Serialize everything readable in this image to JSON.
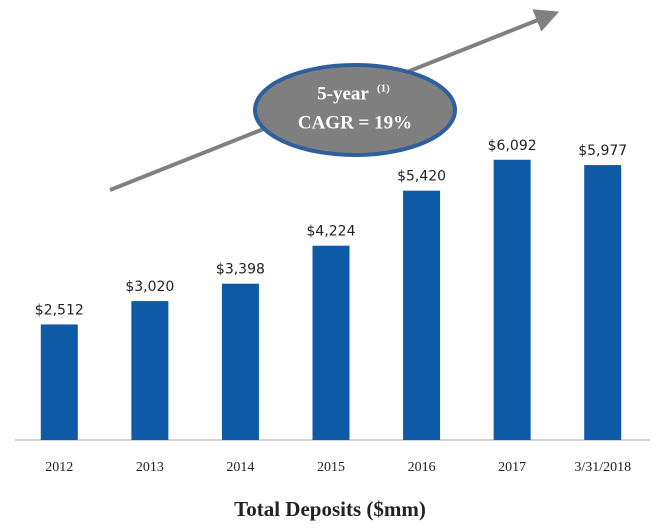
{
  "chart_data": {
    "type": "bar",
    "title": "Total Deposits ($mm)",
    "categories": [
      "2012",
      "2013",
      "2014",
      "2015",
      "2016",
      "2017",
      "3/31/2018"
    ],
    "values": [
      2512,
      3020,
      3398,
      4224,
      5420,
      6092,
      5977
    ],
    "value_labels": [
      "$2,512",
      "$3,020",
      "$3,398",
      "$4,224",
      "$5,420",
      "$6,092",
      "$5,977"
    ],
    "color": "#0e5aa7",
    "ylim": [
      0,
      6500
    ],
    "annotation": {
      "line1": "5-year",
      "superscript": "(1)",
      "line2": "CAGR = 19%"
    }
  }
}
